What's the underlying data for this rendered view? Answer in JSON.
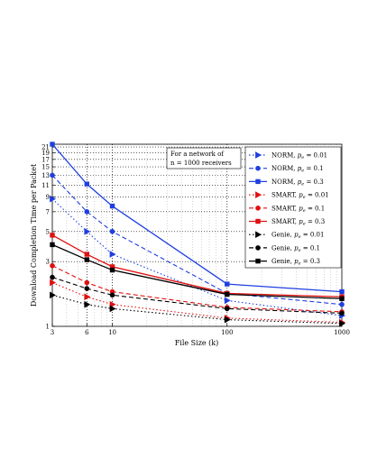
{
  "chart_data": {
    "type": "line",
    "xlabel": "File Size (k)",
    "ylabel": "Download Completion Time per Packet",
    "x_scale": "log",
    "y_scale": "log",
    "xlim": [
      3,
      1000
    ],
    "ylim": [
      1,
      22
    ],
    "x_ticks": [
      3,
      6,
      10,
      100,
      1000
    ],
    "y_ticks": [
      1,
      3,
      5,
      7,
      9,
      11,
      13,
      15,
      17,
      19,
      21
    ],
    "grid": "dotted",
    "annotation": [
      "For a network of",
      "n = 1000 receivers"
    ],
    "legend_position": "top-right",
    "x": [
      3,
      6,
      10,
      100,
      1000
    ],
    "series": [
      {
        "name": "NORM, p_e = 0.01",
        "label_main": "NORM, ",
        "label_sub": "e",
        "label_val": " = 0.01",
        "color": "#1f3fe0",
        "dash": "1.5,2.5",
        "marker": "triangle-right",
        "values": [
          8.7,
          5.0,
          3.4,
          1.55,
          1.2
        ]
      },
      {
        "name": "NORM, p_e = 0.1",
        "label_main": "NORM, ",
        "label_sub": "e",
        "label_val": " = 0.1",
        "color": "#1f3fe0",
        "dash": "5,3",
        "marker": "circle",
        "values": [
          13.0,
          7.0,
          5.0,
          1.75,
          1.45
        ]
      },
      {
        "name": "NORM, p_e = 0.3",
        "label_main": "NORM, ",
        "label_sub": "e",
        "label_val": " = 0.3",
        "color": "#1f3fe0",
        "dash": "",
        "marker": "square",
        "values": [
          22.0,
          11.2,
          7.7,
          2.05,
          1.8
        ]
      },
      {
        "name": "SMART, p_e = 0.01",
        "label_main": "SMART, ",
        "label_sub": "e",
        "label_val": " = 0.01",
        "color": "#e01010",
        "dash": "1.5,2.5",
        "marker": "triangle-right",
        "values": [
          2.1,
          1.65,
          1.45,
          1.15,
          1.07
        ]
      },
      {
        "name": "SMART, p_e = 0.1",
        "label_main": "SMART, ",
        "label_sub": "e",
        "label_val": " = 0.1",
        "color": "#e01010",
        "dash": "5,3",
        "marker": "circle",
        "values": [
          2.8,
          2.1,
          1.8,
          1.38,
          1.28
        ]
      },
      {
        "name": "SMART, p_e = 0.3",
        "label_main": "SMART, ",
        "label_sub": "e",
        "label_val": " = 0.3",
        "color": "#e01010",
        "dash": "",
        "marker": "square",
        "values": [
          4.7,
          3.4,
          2.75,
          1.75,
          1.65
        ]
      },
      {
        "name": "Genie, p_e = 0.01",
        "label_main": "Genie, ",
        "label_sub": "e",
        "label_val": " = 0.01",
        "color": "#000000",
        "dash": "1.5,2.5",
        "marker": "triangle-right",
        "values": [
          1.7,
          1.45,
          1.35,
          1.12,
          1.05
        ]
      },
      {
        "name": "Genie, p_e = 0.1",
        "label_main": "Genie, ",
        "label_sub": "e",
        "label_val": " = 0.1",
        "color": "#000000",
        "dash": "5,3",
        "marker": "circle",
        "values": [
          2.3,
          1.9,
          1.7,
          1.35,
          1.25
        ]
      },
      {
        "name": "Genie, p_e = 0.3",
        "label_main": "Genie, ",
        "label_sub": "e",
        "label_val": " = 0.3",
        "color": "#000000",
        "dash": "",
        "marker": "square",
        "values": [
          4.0,
          3.1,
          2.6,
          1.72,
          1.6
        ]
      }
    ]
  }
}
